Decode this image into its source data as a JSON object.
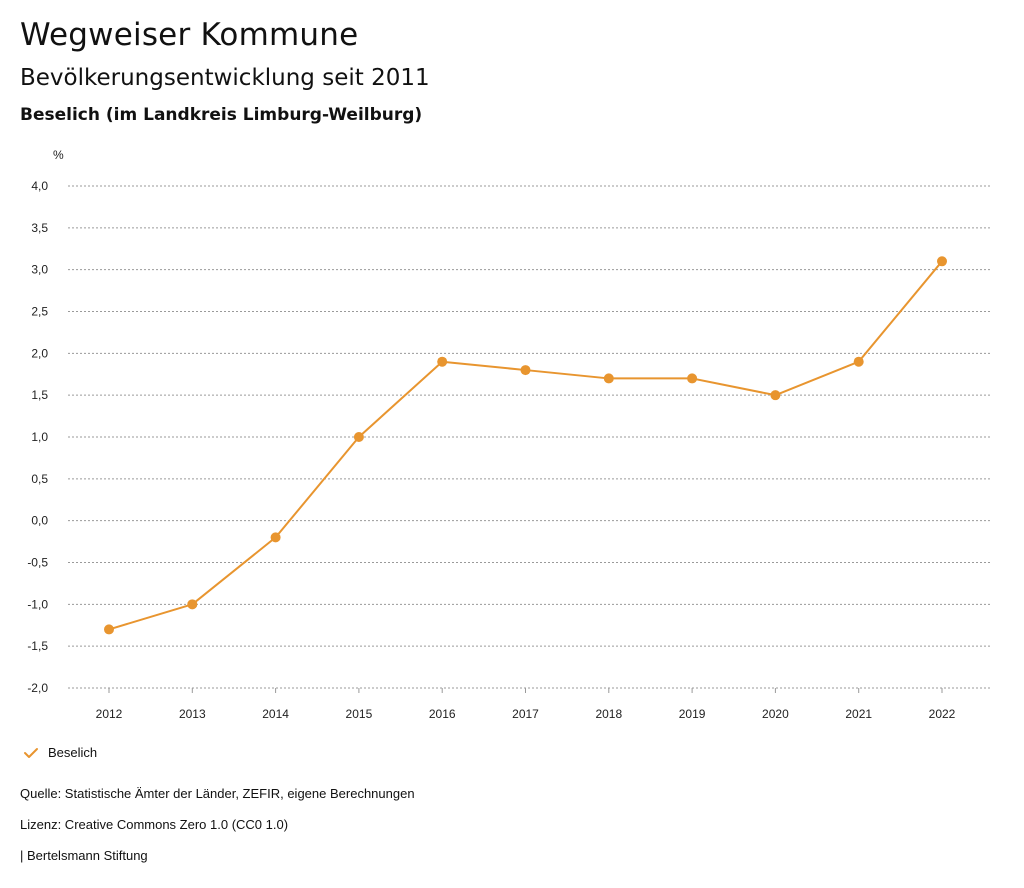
{
  "header": {
    "title": "Wegweiser Kommune",
    "subtitle": "Bevölkerungsentwicklung seit 2011",
    "region": "Beselich (im Landkreis Limburg-Weilburg)"
  },
  "chart_data": {
    "type": "line",
    "title": "Bevölkerungsentwicklung seit 2011",
    "ylabel": "%",
    "xlabel": "",
    "categories": [
      "2012",
      "2013",
      "2014",
      "2015",
      "2016",
      "2017",
      "2018",
      "2019",
      "2020",
      "2021",
      "2022"
    ],
    "series": [
      {
        "name": "Beselich",
        "color": "#E8952F",
        "values": [
          -1.3,
          -1.0,
          -0.2,
          1.0,
          1.9,
          1.8,
          1.7,
          1.7,
          1.5,
          1.9,
          3.1
        ]
      }
    ],
    "ylim": [
      -2.0,
      4.0
    ],
    "yticks": [
      4.0,
      3.5,
      3.0,
      2.5,
      2.0,
      1.5,
      1.0,
      0.5,
      0.0,
      -0.5,
      -1.0,
      -1.5,
      -2.0
    ],
    "ytick_labels": [
      "4,0",
      "3,5",
      "3,0",
      "2,5",
      "2,0",
      "1,5",
      "1,0",
      "0,5",
      "0,0",
      "-0,5",
      "-1,0",
      "-1,5",
      "-2,0"
    ],
    "grid": true,
    "legend_position": "bottom-left"
  },
  "legend": {
    "label": "Beselich"
  },
  "footer": {
    "source": "Quelle: Statistische Ämter der Länder, ZEFIR, eigene Berechnungen",
    "license": "Lizenz: Creative Commons Zero 1.0 (CC0 1.0)",
    "publisher": "| Bertelsmann Stiftung"
  }
}
